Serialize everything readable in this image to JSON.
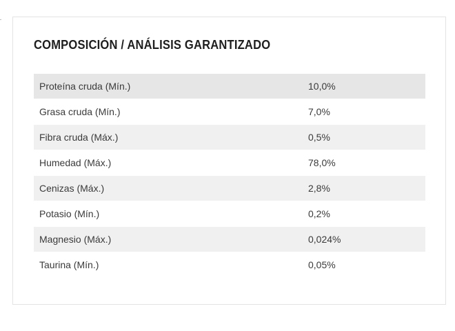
{
  "card": {
    "title": "COMPOSICIÓN / ANÁLISIS GARANTIZADO"
  },
  "table": {
    "rows": [
      {
        "name": "Proteína cruda (Mín.)",
        "value": "10,0%"
      },
      {
        "name": "Grasa cruda (Mín.)",
        "value": "7,0%"
      },
      {
        "name": "Fibra cruda (Máx.)",
        "value": "0,5%"
      },
      {
        "name": "Humedad (Máx.)",
        "value": "78,0%"
      },
      {
        "name": "Cenizas (Máx.)",
        "value": "2,8%"
      },
      {
        "name": "Potasio (Mín.)",
        "value": "0,2%"
      },
      {
        "name": "Magnesio (Máx.)",
        "value": "0,024%"
      },
      {
        "name": "Taurina (Mín.)",
        "value": "0,05%"
      }
    ]
  }
}
